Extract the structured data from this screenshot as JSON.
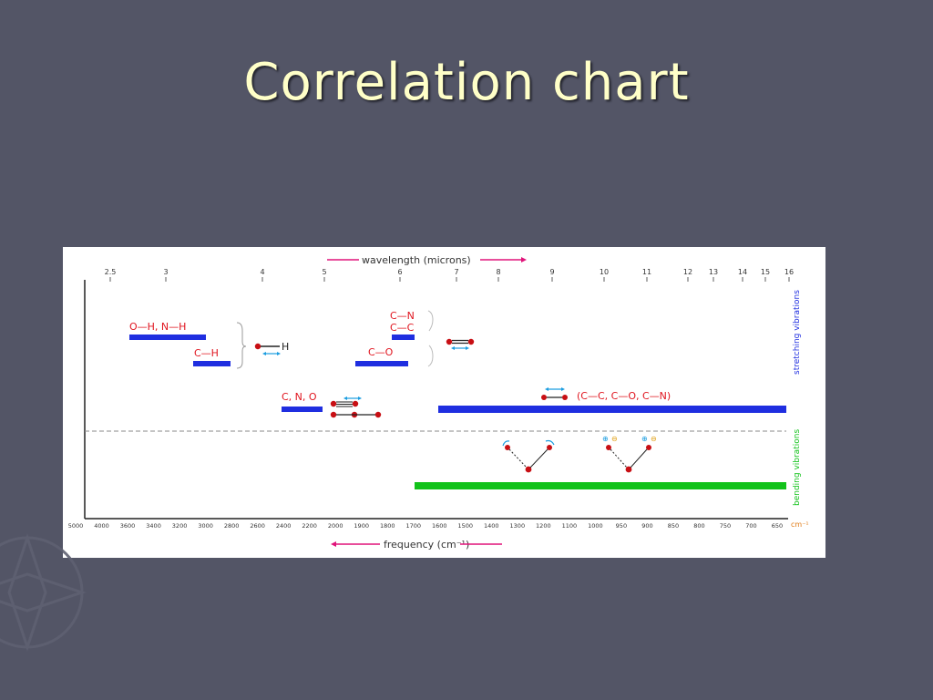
{
  "slide": {
    "title": "Correlation chart"
  },
  "chart": {
    "wavelength_label": "wavelength (microns)",
    "wavelength_ticks": [
      "2.5",
      "3",
      "4",
      "5",
      "6",
      "7",
      "8",
      "9",
      "10",
      "11",
      "12",
      "13",
      "14",
      "15",
      "16"
    ],
    "frequency_label": "frequency (cm⁻¹)",
    "frequency_ticks": [
      "5000",
      "4000",
      "3600",
      "3400",
      "3200",
      "3000",
      "2800",
      "2600",
      "2400",
      "2200",
      "2000",
      "1900",
      "1800",
      "1700",
      "1600",
      "1500",
      "1400",
      "1300",
      "1200",
      "1100",
      "1000",
      "950",
      "900",
      "850",
      "800",
      "750",
      "700",
      "650"
    ],
    "unit_right": "cm⁻¹",
    "labels": {
      "oh_nh": "O—H, N—H",
      "ch": "C—H",
      "h_atom": "H",
      "cn_triple": "C—N",
      "cc_triple": "C—C",
      "co_double": "C—O",
      "triple_atoms": "C, N, O",
      "single_bonds": "(C—C, C—O, C—N)",
      "stretching": "stretching vibrations",
      "bending": "bending vibrations"
    },
    "colors": {
      "stretch_band": "#1f2ee0",
      "bend_band": "#12c21a",
      "label_red": "#e0141e",
      "arrow_pink": "#e0147a",
      "arrow_blue": "#1a9de0",
      "atom": "#c80f14",
      "dash": "#8a8a8a"
    }
  }
}
